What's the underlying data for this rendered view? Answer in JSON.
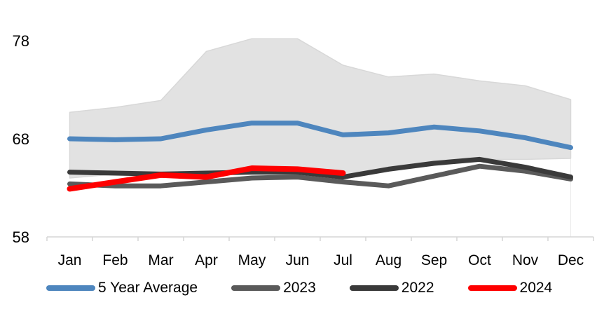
{
  "chart_data": {
    "type": "line",
    "title": "",
    "categories": [
      "Jan",
      "Feb",
      "Mar",
      "Apr",
      "May",
      "Jun",
      "Jul",
      "Aug",
      "Sep",
      "Oct",
      "Nov",
      "Dec"
    ],
    "y_ticks": [
      58,
      68,
      78
    ],
    "ylim": [
      58,
      79.5
    ],
    "grid": false,
    "legend_position": "bottom",
    "band": {
      "name": "5-year-range-band",
      "fill": "#E2E2E2",
      "border": "#D8D8D8",
      "top": [
        70.7,
        71.2,
        71.9,
        76.9,
        78.2,
        78.2,
        75.5,
        74.3,
        74.6,
        73.9,
        73.4,
        72.0
      ],
      "bottom": [
        64.0,
        64.4,
        64.4,
        64.3,
        64.8,
        64.8,
        64.2,
        64.9,
        65.5,
        65.9,
        65.9,
        66.0
      ]
    },
    "series": [
      {
        "name": "5 Year Average",
        "color": "#4E86BE",
        "width": 7,
        "values": [
          68.0,
          67.9,
          68.0,
          68.9,
          69.6,
          69.6,
          68.4,
          68.6,
          69.2,
          68.8,
          68.1,
          67.1
        ]
      },
      {
        "name": "2023",
        "color": "#5A5A5A",
        "width": 7,
        "values": [
          63.4,
          63.2,
          63.2,
          63.6,
          64.0,
          64.1,
          63.6,
          63.2,
          64.2,
          65.2,
          64.7,
          63.9
        ]
      },
      {
        "name": "2022",
        "color": "#3A3A3A",
        "width": 7,
        "values": [
          64.6,
          64.5,
          64.4,
          64.5,
          64.6,
          64.6,
          64.1,
          64.9,
          65.5,
          65.9,
          65.1,
          64.1
        ]
      },
      {
        "name": "2024",
        "color": "#FE0000",
        "width": 8,
        "values": [
          62.9,
          63.6,
          64.3,
          64.1,
          65.0,
          64.9,
          64.5,
          null,
          null,
          null,
          null,
          null
        ]
      }
    ],
    "axis_color": "#D6D6D6",
    "text_color": "#000000",
    "right_gridline_color": "#EBEBEB"
  }
}
